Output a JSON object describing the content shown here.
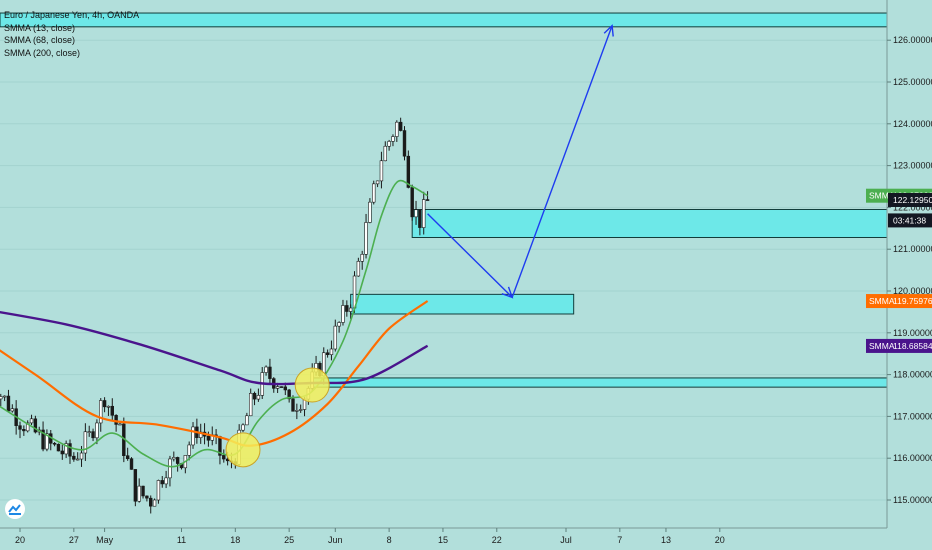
{
  "header": {
    "symbol_line": "Euro / Japanese Yen, 4h, OANDA",
    "indicators": [
      "SMMA (13, close)",
      "SMMA (68, close)",
      "SMMA (200, close)"
    ]
  },
  "price_tags": [
    {
      "label": "SMMA",
      "value": "122.27993",
      "price": 122.27993,
      "color": "#4caf50"
    },
    {
      "label": "",
      "value": "122.12950",
      "price": 122.1295,
      "color": "#131722"
    },
    {
      "label": "",
      "value": "03:41:38",
      "price": 121.88,
      "color": "#131722"
    },
    {
      "label": "SMMA",
      "value": "119.75976",
      "price": 119.75976,
      "color": "#ff6d00"
    },
    {
      "label": "SMMA",
      "value": "118.68584",
      "price": 118.68584,
      "color": "#4a148c"
    }
  ],
  "colors": {
    "background": "#b2dfdb",
    "zone_fill": "#6de8e8",
    "smma13": "#4caf50",
    "smma68": "#ff6d00",
    "smma200": "#4a148c",
    "arrow": "#1e3cf0",
    "marker": "#f5f05a"
  },
  "chart_data": {
    "type": "candlestick",
    "title": "Euro / Japanese Yen, 4h, OANDA",
    "ylim": [
      114.5,
      127.0
    ],
    "y_ticks": [
      "115.00000",
      "116.00000",
      "117.00000",
      "118.00000",
      "119.00000",
      "120.00000",
      "121.00000",
      "122.00000",
      "123.00000",
      "124.00000",
      "125.00000",
      "126.00000"
    ],
    "x_ticks": [
      "20",
      "27",
      "May",
      "11",
      "18",
      "25",
      "Jun",
      "8",
      "15",
      "22",
      "Jul",
      "7",
      "13",
      "20"
    ],
    "price_path_points": [
      {
        "date": "Apr 16",
        "price": 117.9
      },
      {
        "date": "Apr 20",
        "price": 116.9
      },
      {
        "date": "Apr 24",
        "price": 116.3
      },
      {
        "date": "Apr 27",
        "price": 116.0
      },
      {
        "date": "Apr 29",
        "price": 116.5
      },
      {
        "date": "May 1",
        "price": 117.5
      },
      {
        "date": "May 3",
        "price": 116.6
      },
      {
        "date": "May 5",
        "price": 115.2
      },
      {
        "date": "May 7",
        "price": 115.0
      },
      {
        "date": "May 9",
        "price": 115.8
      },
      {
        "date": "May 11",
        "price": 116.0
      },
      {
        "date": "May 13",
        "price": 116.7
      },
      {
        "date": "May 15",
        "price": 116.4
      },
      {
        "date": "May 17",
        "price": 115.8
      },
      {
        "date": "May 18",
        "price": 116.1
      },
      {
        "date": "May 20",
        "price": 117.3
      },
      {
        "date": "May 22",
        "price": 118.0
      },
      {
        "date": "May 24",
        "price": 117.8
      },
      {
        "date": "May 25",
        "price": 117.2
      },
      {
        "date": "May 27",
        "price": 117.5
      },
      {
        "date": "May 29",
        "price": 118.2
      },
      {
        "date": "May 31",
        "price": 119.0
      },
      {
        "date": "Jun 2",
        "price": 119.8
      },
      {
        "date": "Jun 4",
        "price": 121.5
      },
      {
        "date": "Jun 6",
        "price": 123.2
      },
      {
        "date": "Jun 8",
        "price": 124.0
      },
      {
        "date": "Jun 9",
        "price": 123.5
      },
      {
        "date": "Jun 10",
        "price": 122.0
      },
      {
        "date": "Jun 11",
        "price": 121.7
      },
      {
        "date": "Jun 12",
        "price": 122.13
      }
    ],
    "series": [
      {
        "name": "SMMA (13, close)",
        "color": "#4caf50",
        "points": [
          {
            "date": "Apr 16",
            "price": 117.4
          },
          {
            "date": "Apr 23",
            "price": 116.6
          },
          {
            "date": "Apr 28",
            "price": 116.2
          },
          {
            "date": "May 2",
            "price": 116.6
          },
          {
            "date": "May 6",
            "price": 116.1
          },
          {
            "date": "May 10",
            "price": 115.8
          },
          {
            "date": "May 14",
            "price": 116.2
          },
          {
            "date": "May 18",
            "price": 116.1
          },
          {
            "date": "May 21",
            "price": 116.9
          },
          {
            "date": "May 24",
            "price": 117.4
          },
          {
            "date": "May 28",
            "price": 117.6
          },
          {
            "date": "Jun 1",
            "price": 118.8
          },
          {
            "date": "Jun 4",
            "price": 120.5
          },
          {
            "date": "Jun 6",
            "price": 121.8
          },
          {
            "date": "Jun 8",
            "price": 122.6
          },
          {
            "date": "Jun 10",
            "price": 122.5
          },
          {
            "date": "Jun 12",
            "price": 122.28
          }
        ]
      },
      {
        "name": "SMMA (68, close)",
        "color": "#ff6d00",
        "points": [
          {
            "date": "Apr 14",
            "price": 119.0
          },
          {
            "date": "Apr 22",
            "price": 118.0
          },
          {
            "date": "Apr 30",
            "price": 117.0
          },
          {
            "date": "May 8",
            "price": 116.8
          },
          {
            "date": "May 16",
            "price": 116.5
          },
          {
            "date": "May 20",
            "price": 116.3
          },
          {
            "date": "May 25",
            "price": 116.6
          },
          {
            "date": "May 30",
            "price": 117.3
          },
          {
            "date": "Jun 3",
            "price": 118.2
          },
          {
            "date": "Jun 7",
            "price": 119.1
          },
          {
            "date": "Jun 12",
            "price": 119.76
          }
        ]
      },
      {
        "name": "SMMA (200, close)",
        "color": "#4a148c",
        "points": [
          {
            "date": "Apr 14",
            "price": 119.6
          },
          {
            "date": "Apr 26",
            "price": 119.2
          },
          {
            "date": "May 6",
            "price": 118.7
          },
          {
            "date": "May 16",
            "price": 118.1
          },
          {
            "date": "May 21",
            "price": 117.8
          },
          {
            "date": "May 28",
            "price": 117.8
          },
          {
            "date": "Jun 4",
            "price": 117.9
          },
          {
            "date": "Jun 12",
            "price": 118.69
          }
        ]
      }
    ],
    "zones": [
      {
        "top": 126.65,
        "bottom": 126.32,
        "from": "Apr 14",
        "to": "right-edge"
      },
      {
        "top": 121.95,
        "bottom": 121.28,
        "from": "Jun 10",
        "to": "right-edge"
      },
      {
        "top": 119.92,
        "bottom": 119.45,
        "from": "Jun 2",
        "to": "Jul 1"
      },
      {
        "top": 117.92,
        "bottom": 117.7,
        "from": "May 28",
        "to": "right-edge"
      }
    ],
    "projection_path": [
      {
        "date": "Jun 12",
        "price": 121.85
      },
      {
        "date": "Jun 23",
        "price": 119.85
      },
      {
        "date": "Jul 6",
        "price": 126.35
      }
    ],
    "markers": [
      {
        "date": "May 19",
        "price": 116.2
      },
      {
        "date": "May 28",
        "price": 117.75
      }
    ]
  }
}
